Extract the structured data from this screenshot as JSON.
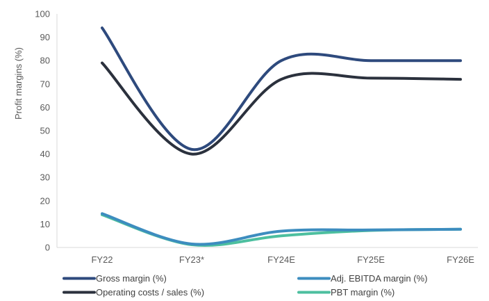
{
  "chart_data": {
    "type": "line",
    "categories": [
      "FY22",
      "FY23*",
      "FY24E",
      "FY25E",
      "FY26E"
    ],
    "ylabel": "Profit margins (%)",
    "ylim": [
      0,
      100
    ],
    "yticks": [
      0,
      10,
      20,
      30,
      40,
      50,
      60,
      70,
      80,
      90,
      100
    ],
    "grid": false,
    "legend_position": "bottom",
    "series": [
      {
        "name": "Gross margin (%)",
        "values": [
          94.0,
          42.0,
          80.0,
          80.0,
          80.0
        ],
        "color": "#2e4a7d"
      },
      {
        "name": "Adj. EBITDA margin (%)",
        "values": [
          14.5,
          1.5,
          7.0,
          7.5,
          7.8
        ],
        "color": "#3d8dbf"
      },
      {
        "name": "Operating costs / sales (%)",
        "values": [
          79.0,
          40.0,
          72.0,
          72.5,
          72.0
        ],
        "color": "#2b313d"
      },
      {
        "name": "PBT margin (%)",
        "values": [
          14.0,
          1.2,
          5.0,
          7.3,
          7.8
        ],
        "color": "#4dbf9f"
      }
    ]
  }
}
